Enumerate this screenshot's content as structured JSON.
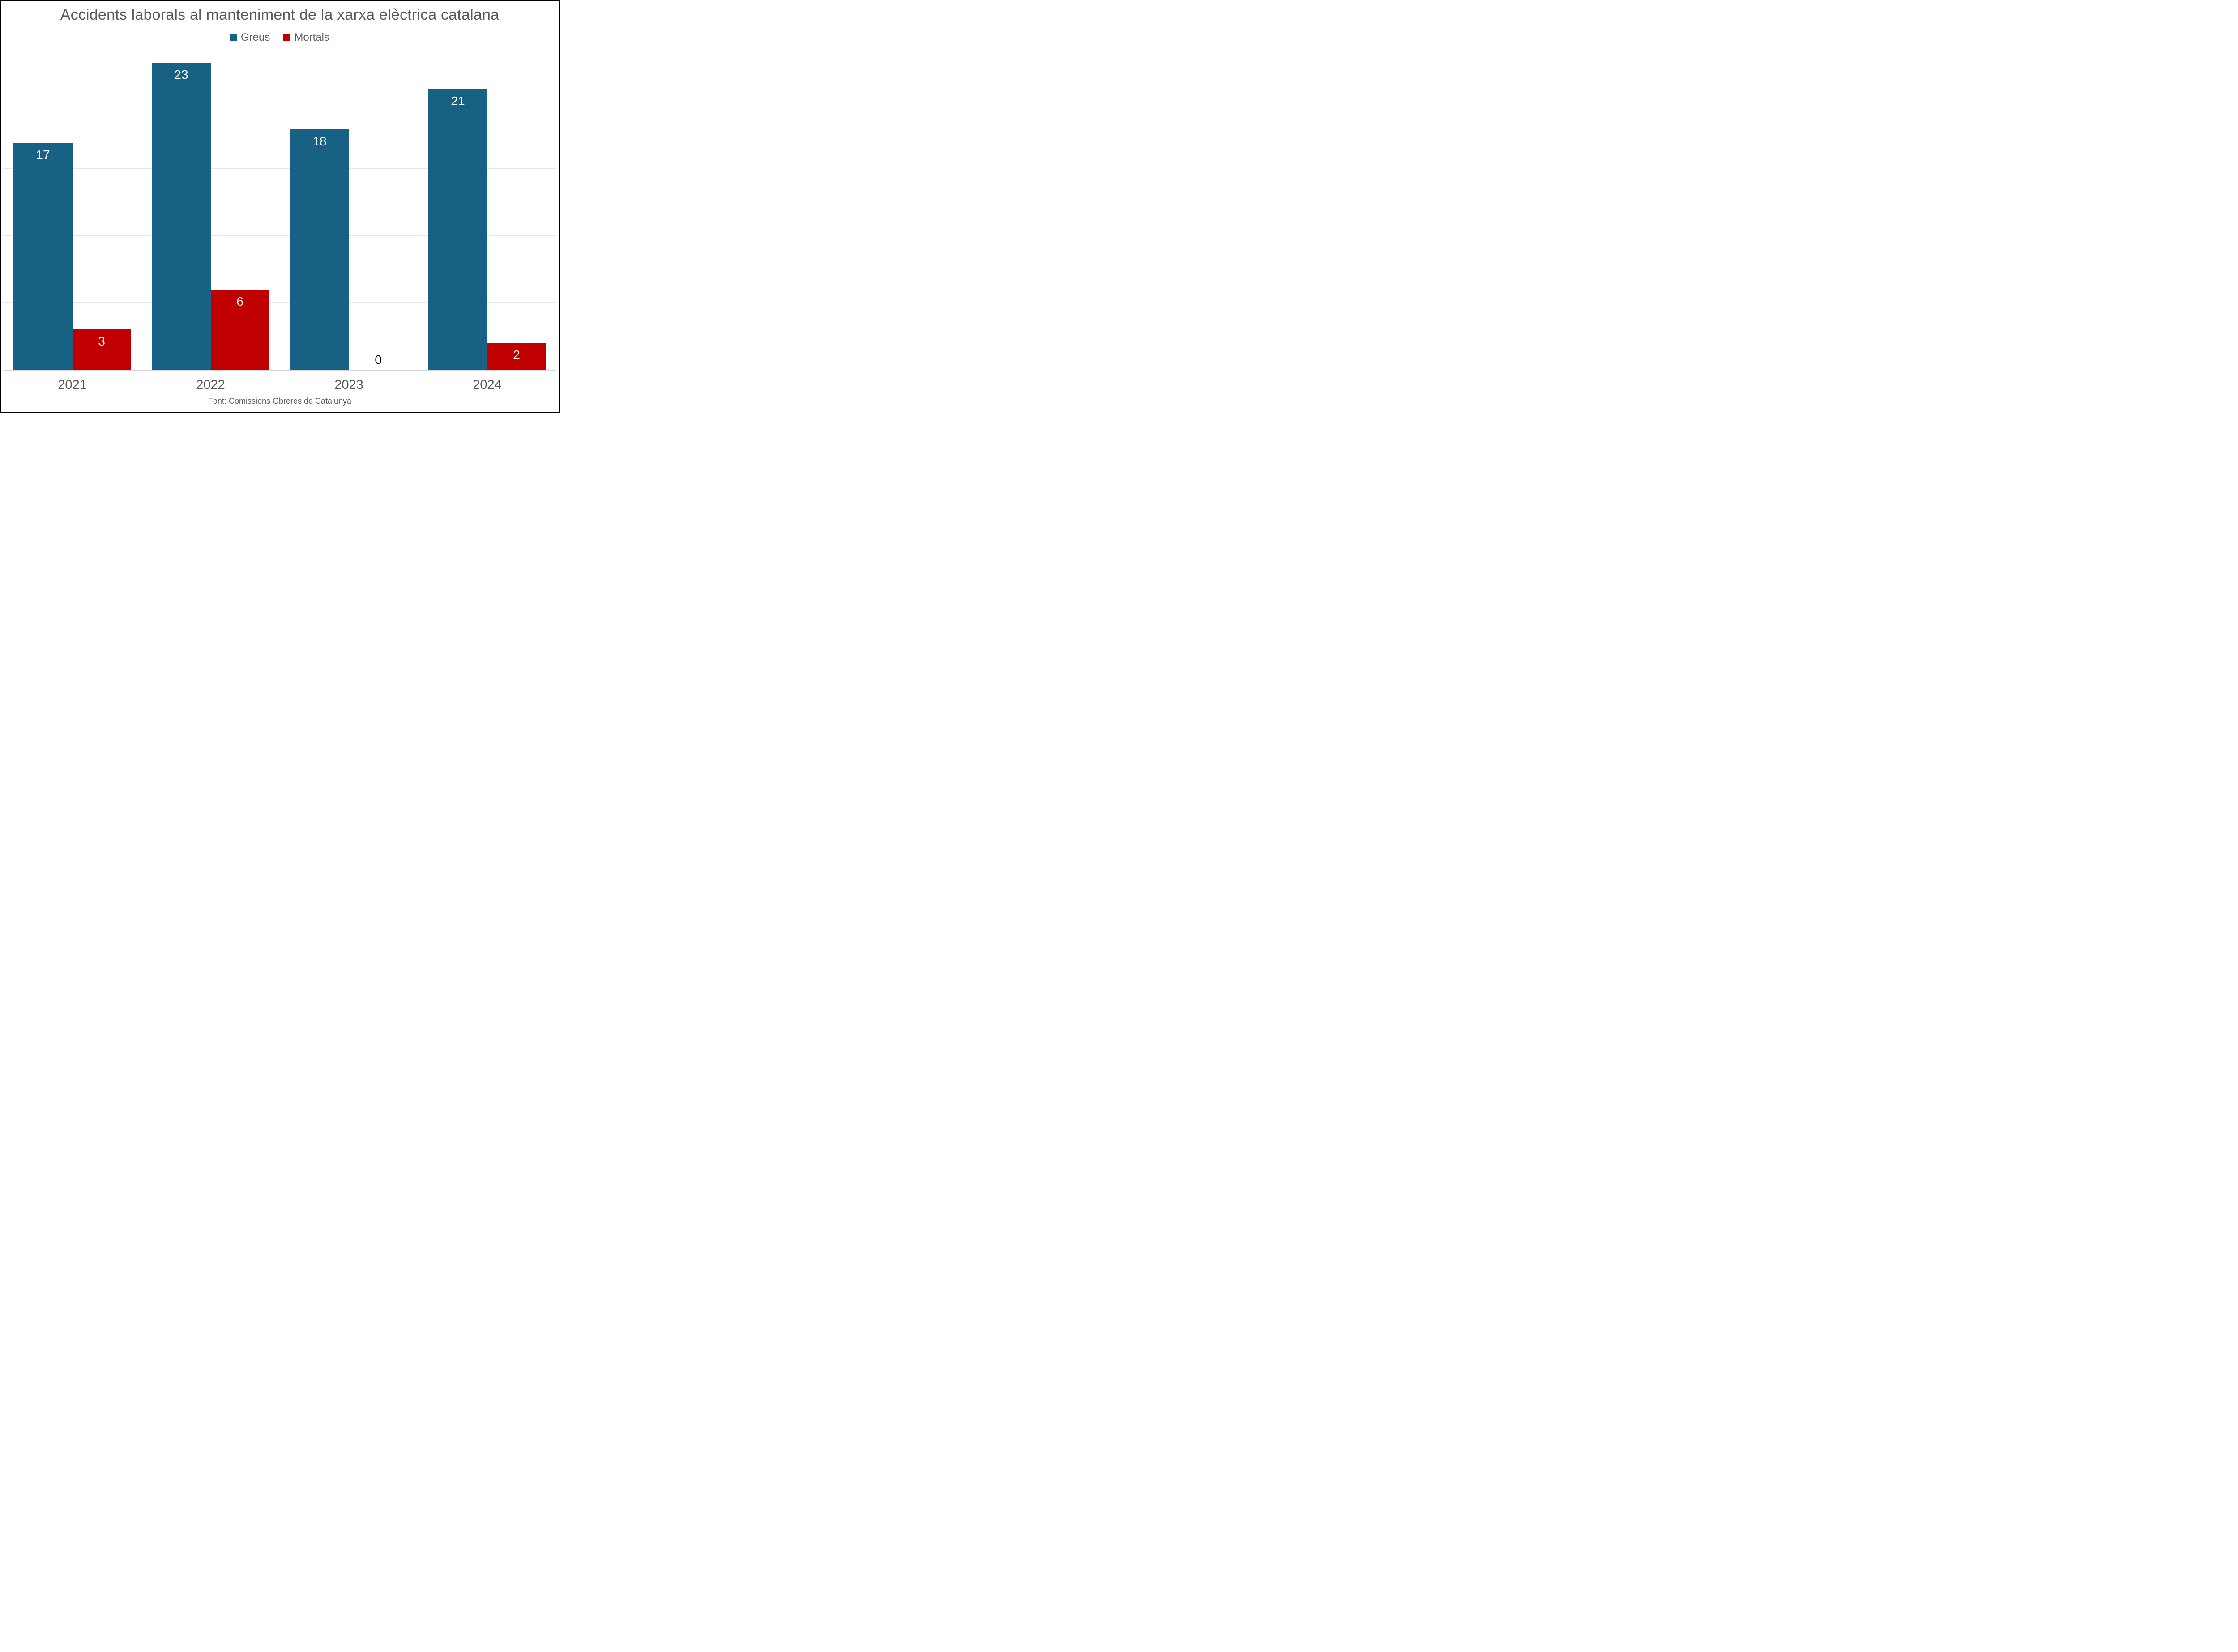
{
  "chart_data": {
    "type": "bar",
    "title": "Accidents laborals al manteniment de la xarxa elèctrica catalana",
    "categories": [
      "2021",
      "2022",
      "2023",
      "2024"
    ],
    "series": [
      {
        "name": "Greus",
        "color": "#176284",
        "values": [
          17,
          23,
          18,
          21
        ]
      },
      {
        "name": "Mortals",
        "color": "#C00000",
        "values": [
          3,
          6,
          0,
          2
        ]
      }
    ],
    "ylim": [
      0,
      25
    ],
    "gridlines": [
      5,
      10,
      15,
      20
    ],
    "grid_on": true,
    "legend_position": "top",
    "data_labels": {
      "show": true,
      "inside_color": "#FFFFFF",
      "zero_color": "#000000"
    },
    "text_color": "#595959",
    "grid_color": "#E6E6E6",
    "axis_line_color": "#D6D6D6",
    "source_note": "Font: Comissions Obreres de Catalunya"
  }
}
